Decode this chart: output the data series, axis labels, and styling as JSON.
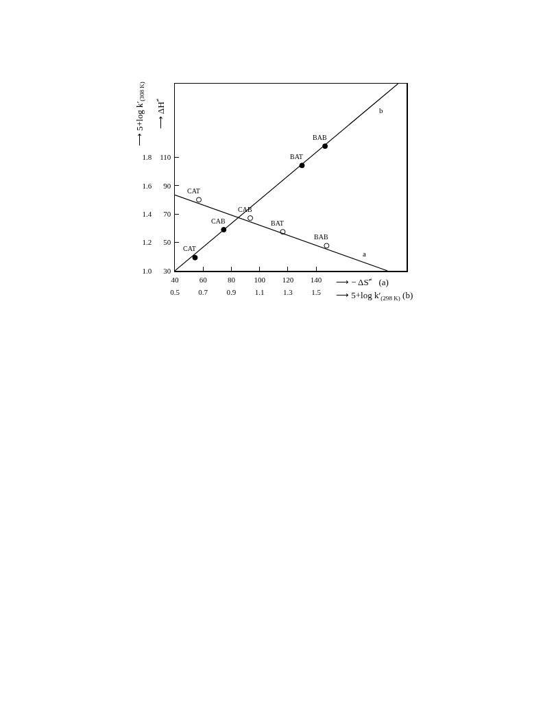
{
  "chart_data": [
    {
      "type": "scatter",
      "xlabel": "⟶ − ΔS$^{≠}$   (a)",
      "ylabel": "⟶ ΔH$^{≠}$",
      "xlim": [
        40,
        204
      ],
      "xticks": [
        40,
        60,
        80,
        100,
        120,
        140
      ],
      "ylim": [
        30,
        162
      ],
      "yticks": [
        30,
        50,
        70,
        90,
        110
      ],
      "series": [
        {
          "name": "a",
          "type": "line",
          "color": "#000000",
          "line_style": "solid",
          "x": [
            40,
            190.5
          ],
          "values": [
            83.5,
            30
          ]
        },
        {
          "marker": "circle-open",
          "color": "#000000",
          "x": [
            57,
            93.4,
            116.4,
            147.4
          ],
          "values": [
            80.1,
            67.2,
            57.5,
            47.7
          ],
          "value_labels": [
            "CAT",
            "CAB",
            "BAT",
            "BAB"
          ]
        }
      ]
    },
    {
      "type": "scatter",
      "xlabel": "⟶ 5+log k′$_{(298 K)}$ (b)",
      "ylabel": "⟶ 5+log k′$_{(308 K)}$",
      "xlim": [
        0.5,
        2.14
      ],
      "xticks": [
        0.5,
        0.7,
        0.9,
        1.1,
        1.3,
        1.5
      ],
      "ylim": [
        1.0,
        2.32
      ],
      "yticks": [
        {
          "value": 1.0,
          "label": "1.0"
        },
        1.2,
        1.4,
        1.6,
        1.8
      ],
      "series": [
        {
          "name": "b",
          "type": "line",
          "color": "#000000",
          "line_style": "solid",
          "x": [
            0.5,
            2.08
          ],
          "values": [
            1.0,
            2.32
          ]
        },
        {
          "marker": "circle",
          "color": "#000000",
          "x": [
            0.643,
            0.846,
            1.4,
            1.563
          ],
          "values": [
            1.093,
            1.29,
            1.743,
            1.879
          ],
          "value_labels": [
            "CAT",
            "CAB",
            "BAT",
            "BAB"
          ]
        }
      ]
    }
  ]
}
